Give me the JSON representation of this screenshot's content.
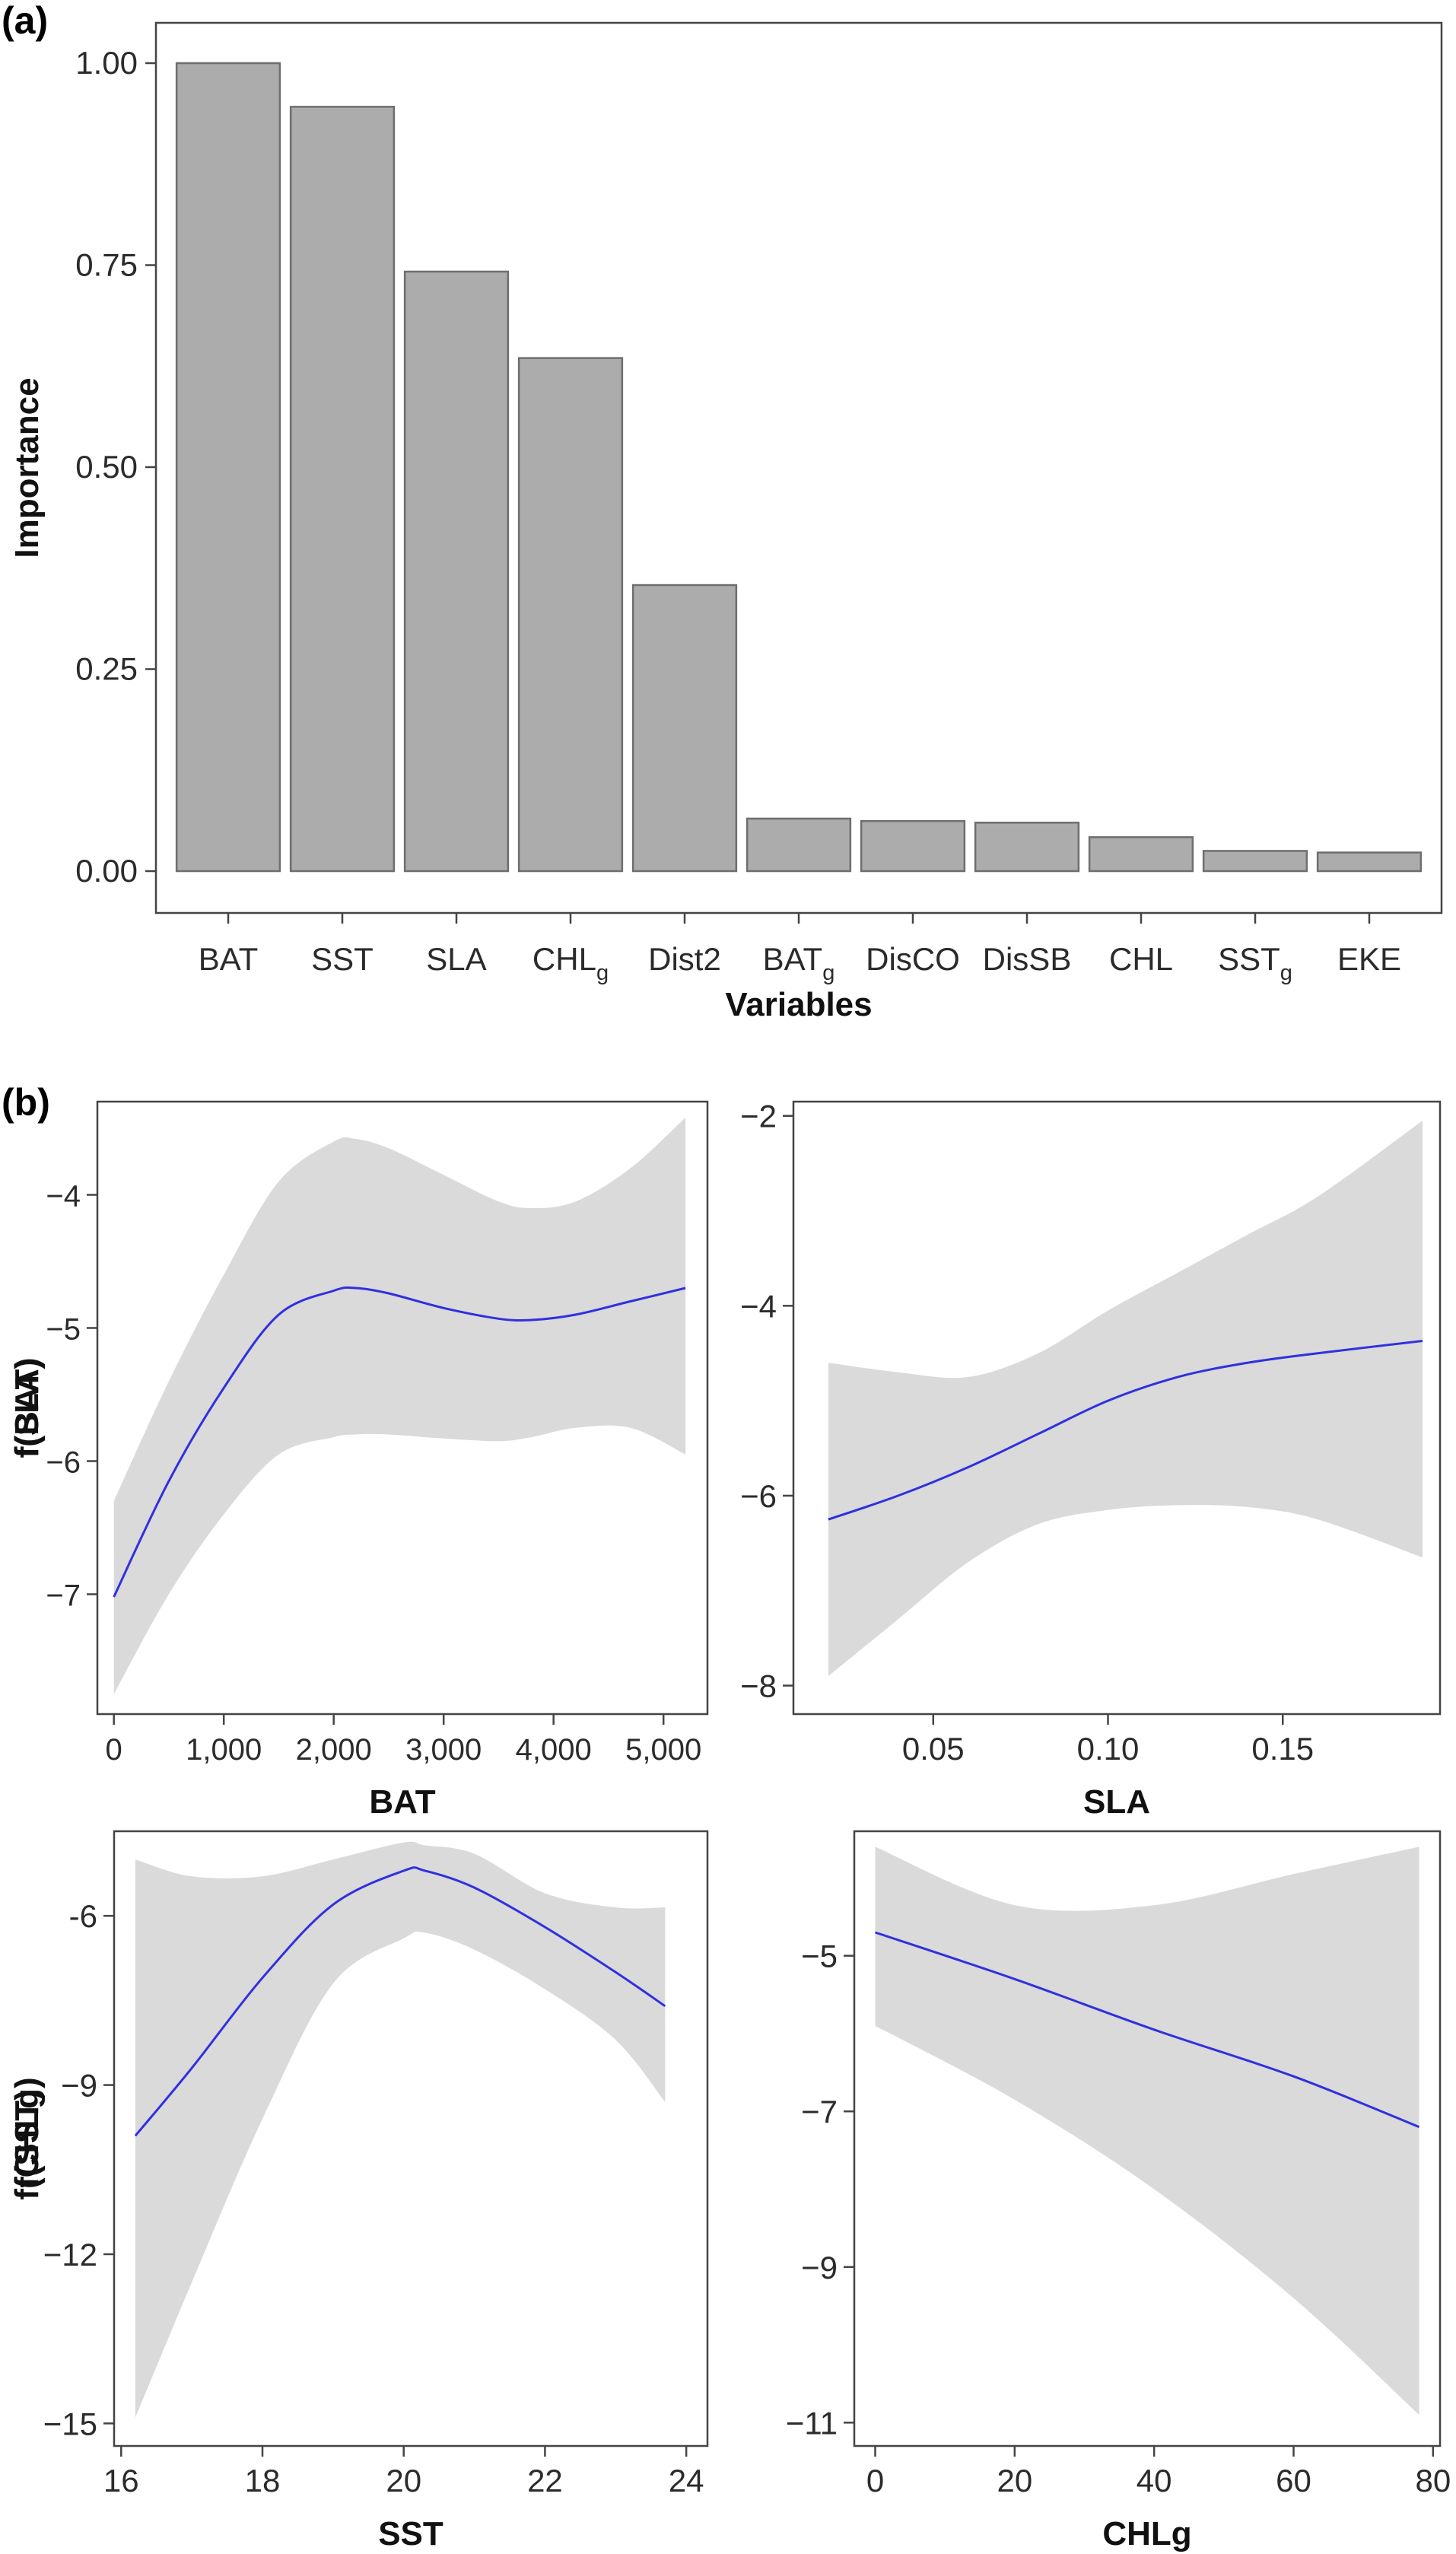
{
  "panels": {
    "a": "(a)",
    "b": "(b)"
  },
  "colors": {
    "bar_fill": "#acacac",
    "bar_edge": "#6e6e6e",
    "band": "#dadada",
    "curve": "#3030e0"
  },
  "chart_data": [
    {
      "type": "bar",
      "panel": "(a)",
      "xlabel": "Variables",
      "ylabel": "Importance",
      "ylim": [
        0,
        1.0
      ],
      "yticks": [
        "0.00",
        "0.25",
        "0.50",
        "0.75",
        "1.00"
      ],
      "grid": false,
      "categories": [
        {
          "base": "BAT",
          "sub": ""
        },
        {
          "base": "SST",
          "sub": ""
        },
        {
          "base": "SLA",
          "sub": ""
        },
        {
          "base": "CHL",
          "sub": "g"
        },
        {
          "base": "Dist2",
          "sub": ""
        },
        {
          "base": "BAT",
          "sub": "g"
        },
        {
          "base": "DisCO",
          "sub": ""
        },
        {
          "base": "DisSB",
          "sub": ""
        },
        {
          "base": "CHL",
          "sub": ""
        },
        {
          "base": "SST",
          "sub": "g"
        },
        {
          "base": "EKE",
          "sub": ""
        }
      ],
      "values": [
        1.0,
        0.946,
        0.742,
        0.635,
        0.354,
        0.065,
        0.062,
        0.06,
        0.042,
        0.025,
        0.023
      ]
    },
    {
      "type": "line",
      "panel": "(b)",
      "xlabel": "BAT",
      "ylabel": "f(BAT)",
      "xlim": [
        -150,
        5400
      ],
      "ylim": [
        -7.9,
        -3.3
      ],
      "xticks": [
        0,
        1000,
        2000,
        3000,
        4000,
        5000
      ],
      "xtick_labels": [
        "0",
        "1,000",
        "2,000",
        "3,000",
        "4,000",
        "5,000"
      ],
      "yticks": [
        -7,
        -6,
        -5,
        -4
      ],
      "ytick_labels": [
        "−7",
        "−6",
        "−5",
        "−4"
      ],
      "x": [
        0,
        500,
        1000,
        1500,
        2000,
        2200,
        2500,
        3000,
        3500,
        3800,
        4200,
        4700,
        5200
      ],
      "y": [
        -7.02,
        -6.15,
        -5.45,
        -4.9,
        -4.72,
        -4.7,
        -4.74,
        -4.85,
        -4.93,
        -4.94,
        -4.9,
        -4.8,
        -4.7
      ],
      "lower": [
        -7.75,
        -7.0,
        -6.4,
        -5.95,
        -5.82,
        -5.8,
        -5.8,
        -5.83,
        -5.85,
        -5.82,
        -5.75,
        -5.75,
        -5.95
      ],
      "upper": [
        -6.3,
        -5.4,
        -4.6,
        -3.9,
        -3.6,
        -3.58,
        -3.65,
        -3.85,
        -4.05,
        -4.1,
        -4.05,
        -3.8,
        -3.42
      ]
    },
    {
      "type": "line",
      "panel": "(b)",
      "xlabel": "SLA",
      "ylabel": "f(SLA)",
      "xlim": [
        0.01,
        0.195
      ],
      "ylim": [
        -8.3,
        -1.85
      ],
      "xticks": [
        0.05,
        0.1,
        0.15
      ],
      "xtick_labels": [
        "0.05",
        "0.10",
        "0.15"
      ],
      "yticks": [
        -8,
        -6,
        -4,
        -2
      ],
      "ytick_labels": [
        "−8",
        "−6",
        "−4",
        "−2"
      ],
      "x": [
        0.02,
        0.04,
        0.06,
        0.08,
        0.1,
        0.12,
        0.14,
        0.16,
        0.19
      ],
      "y": [
        -6.25,
        -6.0,
        -5.7,
        -5.35,
        -5.0,
        -4.75,
        -4.6,
        -4.5,
        -4.37
      ],
      "lower": [
        -7.9,
        -7.3,
        -6.7,
        -6.3,
        -6.15,
        -6.1,
        -6.12,
        -6.25,
        -6.65
      ],
      "upper": [
        -4.6,
        -4.7,
        -4.75,
        -4.5,
        -4.05,
        -3.65,
        -3.25,
        -2.85,
        -2.05
      ]
    },
    {
      "type": "line",
      "panel": "(b)",
      "xlabel": "SST",
      "ylabel": "f(SST)",
      "xlim": [
        15.9,
        24.3
      ],
      "ylim": [
        -15.4,
        -4.5
      ],
      "xticks": [
        16,
        18,
        20,
        22,
        24
      ],
      "xtick_labels": [
        "16",
        "18",
        "20",
        "22",
        "24"
      ],
      "yticks": [
        -15,
        -12,
        -9,
        -6
      ],
      "ytick_labels": [
        "−15",
        "−12",
        "−9",
        "-6"
      ],
      "x": [
        16.2,
        17,
        18,
        19,
        20,
        20.3,
        21,
        22,
        23,
        23.7
      ],
      "y": [
        -9.9,
        -8.7,
        -7.1,
        -5.8,
        -5.2,
        -5.2,
        -5.5,
        -6.2,
        -7.0,
        -7.6
      ],
      "lower": [
        -14.9,
        -12.5,
        -9.6,
        -7.2,
        -6.4,
        -6.3,
        -6.6,
        -7.3,
        -8.2,
        -9.3
      ],
      "upper": [
        -5.0,
        -5.3,
        -5.3,
        -5.0,
        -4.7,
        -4.75,
        -4.9,
        -5.6,
        -5.85,
        -5.85
      ]
    },
    {
      "type": "line",
      "panel": "(b)",
      "xlabel": "CHLg",
      "ylabel": "f(CHLg)",
      "xlim": [
        -3,
        81
      ],
      "ylim": [
        -11.3,
        -3.4
      ],
      "xticks": [
        0,
        20,
        40,
        60,
        80
      ],
      "xtick_labels": [
        "0",
        "20",
        "40",
        "60",
        "80"
      ],
      "yticks": [
        -11,
        -9,
        -7,
        -5
      ],
      "ytick_labels": [
        "−11",
        "−9",
        "−7",
        "−5"
      ],
      "x": [
        0,
        20,
        40,
        60,
        78
      ],
      "y": [
        -4.7,
        -5.3,
        -5.95,
        -6.55,
        -7.2
      ],
      "lower": [
        -5.9,
        -6.85,
        -8.0,
        -9.4,
        -10.9
      ],
      "upper": [
        -3.6,
        -4.35,
        -4.35,
        -3.95,
        -3.6
      ]
    }
  ]
}
